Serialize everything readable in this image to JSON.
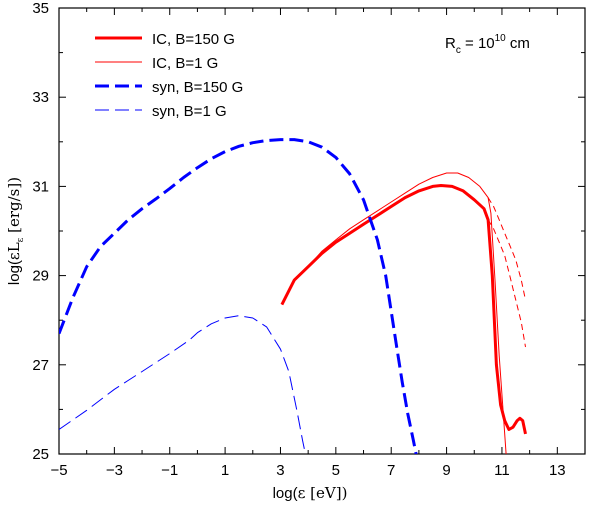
{
  "chart_data": {
    "type": "line",
    "title": "",
    "xlabel": {
      "prefix": "log(",
      "symbol": "ε",
      "unit": " [eV]",
      "suffix": ")"
    },
    "ylabel": {
      "prefix": "log(",
      "symbol": "εL",
      "subscript": "ε",
      "unit": " [erg/s]",
      "suffix": ")"
    },
    "xlim": [
      -5,
      14
    ],
    "ylim": [
      25,
      35
    ],
    "xticks": [
      -5,
      -3,
      -1,
      1,
      3,
      5,
      7,
      9,
      11,
      13
    ],
    "yticks": [
      25,
      27,
      29,
      31,
      33,
      35
    ],
    "grid": false,
    "legend_position": "top-left",
    "annotation": {
      "lead": "R",
      "sub": "c",
      "mid": " = 10",
      "sup": "10",
      "tail": " cm"
    },
    "series": [
      {
        "name": "IC, B=150 G",
        "color": "#ff0000",
        "dash": "solid",
        "width": "thick",
        "points": [
          [
            3.05,
            28.35
          ],
          [
            3.5,
            28.9
          ],
          [
            4,
            29.2
          ],
          [
            4.5,
            29.5
          ],
          [
            5,
            29.75
          ],
          [
            5.5,
            29.95
          ],
          [
            6,
            30.15
          ],
          [
            6.5,
            30.35
          ],
          [
            7,
            30.55
          ],
          [
            7.5,
            30.75
          ],
          [
            8,
            30.9
          ],
          [
            8.5,
            31
          ],
          [
            8.8,
            31.02
          ],
          [
            9.2,
            31
          ],
          [
            9.6,
            30.9
          ],
          [
            10,
            30.7
          ],
          [
            10.35,
            30.5
          ],
          [
            10.5,
            30.25
          ],
          [
            10.65,
            29
          ],
          [
            10.8,
            27
          ],
          [
            10.95,
            26.1
          ],
          [
            11.1,
            25.75
          ],
          [
            11.25,
            25.55
          ],
          [
            11.4,
            25.6
          ],
          [
            11.55,
            25.75
          ],
          [
            11.65,
            25.8
          ],
          [
            11.75,
            25.75
          ],
          [
            11.85,
            25.45
          ]
        ]
      },
      {
        "name": "IC, B=1 G",
        "color": "#ff0000",
        "dash": "solid",
        "width": "thin",
        "points": [
          [
            3.05,
            28.35
          ],
          [
            3.5,
            28.9
          ],
          [
            4,
            29.2
          ],
          [
            4.5,
            29.55
          ],
          [
            5,
            29.8
          ],
          [
            5.5,
            30.05
          ],
          [
            6,
            30.25
          ],
          [
            6.5,
            30.45
          ],
          [
            7,
            30.65
          ],
          [
            7.5,
            30.85
          ],
          [
            8,
            31.05
          ],
          [
            8.5,
            31.2
          ],
          [
            9,
            31.3
          ],
          [
            9.4,
            31.3
          ],
          [
            9.8,
            31.2
          ],
          [
            10.2,
            31
          ],
          [
            10.5,
            30.75
          ],
          [
            10.6,
            30.4
          ],
          [
            10.75,
            28.9
          ],
          [
            10.9,
            27.2
          ],
          [
            11.05,
            25.9
          ],
          [
            11.15,
            25
          ]
        ]
      },
      {
        "name": "",
        "color": "#ff0000",
        "dash": "dash",
        "width": "thin",
        "points": [
          [
            10.5,
            30.75
          ],
          [
            10.7,
            30.55
          ],
          [
            10.9,
            30.25
          ],
          [
            11.1,
            29.95
          ],
          [
            11.3,
            29.65
          ],
          [
            11.5,
            29.35
          ],
          [
            11.7,
            28.9
          ],
          [
            11.85,
            28.45
          ]
        ]
      },
      {
        "name": "",
        "color": "#ff0000",
        "dash": "dash",
        "width": "thin",
        "points": [
          [
            10.5,
            30.25
          ],
          [
            10.7,
            30.05
          ],
          [
            10.9,
            29.75
          ],
          [
            11.1,
            29.45
          ],
          [
            11.3,
            28.95
          ],
          [
            11.5,
            28.45
          ],
          [
            11.7,
            27.95
          ],
          [
            11.85,
            27.4
          ]
        ]
      },
      {
        "name": "syn, B=150 G",
        "color": "#0000ff",
        "dash": "dash",
        "width": "thick",
        "points": [
          [
            -5,
            27.7
          ],
          [
            -4.5,
            28.5
          ],
          [
            -4,
            29.2
          ],
          [
            -3.5,
            29.65
          ],
          [
            -3,
            29.95
          ],
          [
            -2.5,
            30.25
          ],
          [
            -2,
            30.5
          ],
          [
            -1.5,
            30.72
          ],
          [
            -1,
            30.95
          ],
          [
            -0.5,
            31.2
          ],
          [
            0,
            31.42
          ],
          [
            0.5,
            31.62
          ],
          [
            1,
            31.78
          ],
          [
            1.5,
            31.9
          ],
          [
            2,
            31.98
          ],
          [
            2.5,
            32.03
          ],
          [
            3,
            32.05
          ],
          [
            3.5,
            32.05
          ],
          [
            4,
            32
          ],
          [
            4.5,
            31.88
          ],
          [
            5,
            31.65
          ],
          [
            5.5,
            31.28
          ],
          [
            6,
            30.7
          ],
          [
            6.5,
            29.8
          ],
          [
            6.8,
            29
          ],
          [
            7,
            28.2
          ],
          [
            7.2,
            27.4
          ],
          [
            7.4,
            26.6
          ],
          [
            7.6,
            25.9
          ],
          [
            7.8,
            25.3
          ],
          [
            7.9,
            25
          ]
        ]
      },
      {
        "name": "syn, B=1 G",
        "color": "#0000ff",
        "dash": "dash",
        "width": "thin",
        "points": [
          [
            -5,
            25.55
          ],
          [
            -4,
            25.98
          ],
          [
            -3,
            26.45
          ],
          [
            -2,
            26.85
          ],
          [
            -1,
            27.25
          ],
          [
            -0.3,
            27.55
          ],
          [
            0,
            27.72
          ],
          [
            0.5,
            27.92
          ],
          [
            1,
            28.05
          ],
          [
            1.5,
            28.1
          ],
          [
            2,
            28.05
          ],
          [
            2.5,
            27.85
          ],
          [
            3,
            27.35
          ],
          [
            3.3,
            26.85
          ],
          [
            3.6,
            25.95
          ],
          [
            3.8,
            25.3
          ],
          [
            3.9,
            25
          ]
        ]
      }
    ]
  }
}
